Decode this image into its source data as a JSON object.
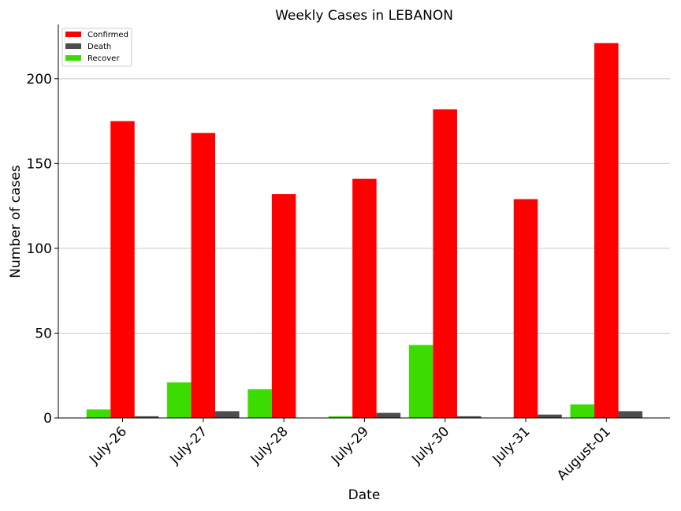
{
  "chart_data": {
    "type": "bar",
    "title": "Weekly Cases in LEBANON",
    "xlabel": "Date",
    "ylabel": "Number of cases",
    "categories": [
      "July-26",
      "July-27",
      "July-28",
      "July-29",
      "July-30",
      "July-31",
      "August-01"
    ],
    "series": [
      {
        "name": "Recover",
        "color": "#3ddc00",
        "values": [
          5,
          21,
          17,
          1,
          43,
          0,
          8
        ]
      },
      {
        "name": "Confirmed",
        "color": "#ff0000",
        "values": [
          175,
          168,
          132,
          141,
          182,
          129,
          221
        ]
      },
      {
        "name": "Death",
        "color": "#4d4d4d",
        "values": [
          1,
          4,
          0,
          3,
          1,
          2,
          4
        ]
      }
    ],
    "legend_order": [
      "Confirmed",
      "Death",
      "Recover"
    ],
    "legend_position": "top-left",
    "ylim": [
      0,
      232
    ],
    "yticks": [
      0,
      50,
      100,
      150,
      200
    ],
    "grid": "horizontal"
  }
}
